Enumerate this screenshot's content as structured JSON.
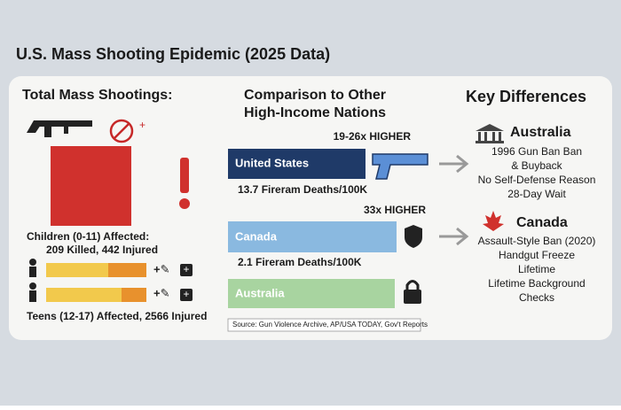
{
  "title": "U.S. Mass Shooting Epidemic (2025 Data)",
  "left": {
    "heading": "Total Mass Shootings:",
    "children_heading": "Children (0-11) Affected:",
    "children_detail": "209 Killed, 442 Injured",
    "teens": "Teens (12-17) Affected, 2566 Injured"
  },
  "middle": {
    "heading": [
      "Comparison to Other",
      "High-Income Nations"
    ],
    "rows": [
      {
        "label": "United States",
        "note": "19-26x HIGHER",
        "stat": "13.7 Fireram Deaths/100K"
      },
      {
        "label": "Canada",
        "note": "33x HIGHER",
        "stat": "2.1 Fireram Deaths/100K"
      },
      {
        "label": "Australia"
      }
    ],
    "source": "Source: Gun Violence Archive, AP/USA TODAY, Gov't Reports"
  },
  "right": {
    "heading": "Key Differences",
    "groups": [
      {
        "country": "Australia",
        "items": [
          "1996 Gun Ban Ban",
          "& Buyback",
          "No Self-Defense Reason",
          "28-Day Wait"
        ]
      },
      {
        "country": "Canada",
        "items": [
          "Assault-Style Ban (2020)",
          "Handgut Freeze",
          "Lifetime",
          "Lifetime Background",
          "Checks"
        ]
      }
    ]
  }
}
